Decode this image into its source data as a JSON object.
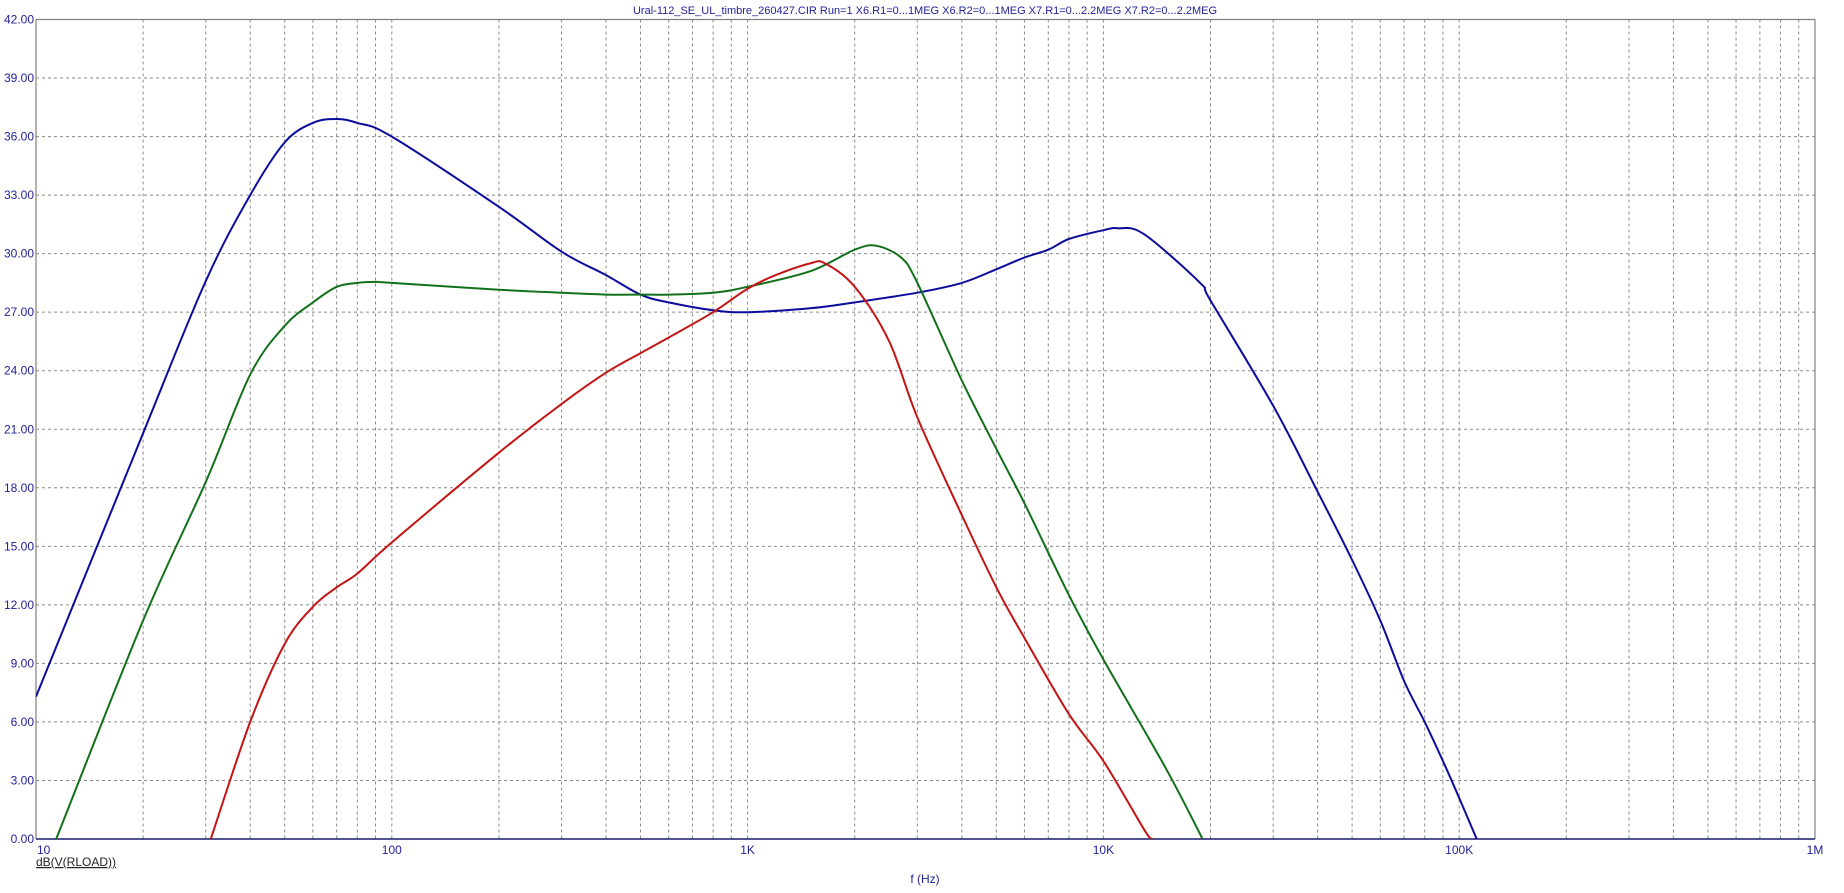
{
  "chart_data": {
    "type": "line",
    "title": "Ural-112_SE_UL_timbre_260427.CIR Run=1 X6.R1=0...1MEG X6.R2=0...1MEG X7.R1=0...2.2MEG X7.R2=0...2.2MEG",
    "xlabel": "f (Hz)",
    "ylabel": "dB(V(RLOAD))",
    "xscale": "log",
    "xlim": [
      10,
      1000000
    ],
    "ylim": [
      0,
      42
    ],
    "grid": true,
    "x_tick_values": [
      10,
      100,
      1000,
      10000,
      100000,
      1000000
    ],
    "x_tick_labels": [
      "10",
      "100",
      "1K",
      "10K",
      "100K",
      "1M"
    ],
    "y_tick_values": [
      0,
      3,
      6,
      9,
      12,
      15,
      18,
      21,
      24,
      27,
      30,
      33,
      36,
      39,
      42
    ],
    "y_tick_labels": [
      "0.00",
      "3.00",
      "6.00",
      "9.00",
      "12.00",
      "15.00",
      "18.00",
      "21.00",
      "24.00",
      "27.00",
      "30.00",
      "33.00",
      "36.00",
      "39.00",
      "42.00"
    ],
    "series": [
      {
        "color": "#0c0c9c",
        "points": [
          [
            10,
            7.3
          ],
          [
            20,
            20.8
          ],
          [
            30,
            28.6
          ],
          [
            40,
            33.0
          ],
          [
            50,
            35.7
          ],
          [
            60,
            36.7
          ],
          [
            70,
            36.9
          ],
          [
            80,
            36.7
          ],
          [
            100,
            36.0
          ],
          [
            200,
            32.4
          ],
          [
            300,
            30.1
          ],
          [
            400,
            28.9
          ],
          [
            500,
            27.9
          ],
          [
            600,
            27.5
          ],
          [
            800,
            27.1
          ],
          [
            1000,
            27.0
          ],
          [
            1500,
            27.2
          ],
          [
            2000,
            27.5
          ],
          [
            3000,
            28.0
          ],
          [
            4000,
            28.5
          ],
          [
            5000,
            29.2
          ],
          [
            6000,
            29.8
          ],
          [
            7000,
            30.2
          ],
          [
            8000,
            30.75
          ],
          [
            10000,
            31.2
          ],
          [
            11000,
            31.3
          ],
          [
            13000,
            31.0
          ],
          [
            18700,
            28.5
          ],
          [
            20000,
            27.6
          ],
          [
            30000,
            22.2
          ],
          [
            40000,
            17.8
          ],
          [
            50000,
            14.3
          ],
          [
            60000,
            11.2
          ],
          [
            70000,
            8.1
          ],
          [
            80000,
            6.0
          ],
          [
            90000,
            4.0
          ],
          [
            100000,
            2.1
          ],
          [
            112000,
            0
          ]
        ]
      },
      {
        "color": "#11701a",
        "points": [
          [
            11.4,
            0
          ],
          [
            20,
            11.2
          ],
          [
            30,
            18.3
          ],
          [
            40,
            23.8
          ],
          [
            50,
            26.3
          ],
          [
            60,
            27.5
          ],
          [
            70,
            28.3
          ],
          [
            80,
            28.5
          ],
          [
            90,
            28.55
          ],
          [
            100,
            28.5
          ],
          [
            200,
            28.15
          ],
          [
            300,
            28.0
          ],
          [
            400,
            27.9
          ],
          [
            500,
            27.9
          ],
          [
            600,
            27.9
          ],
          [
            800,
            28.0
          ],
          [
            1000,
            28.3
          ],
          [
            1500,
            29.1
          ],
          [
            2000,
            30.2
          ],
          [
            2300,
            30.4
          ],
          [
            2700,
            29.8
          ],
          [
            3000,
            28.5
          ],
          [
            4000,
            23.5
          ],
          [
            5000,
            20.0
          ],
          [
            6000,
            17.2
          ],
          [
            8000,
            12.5
          ],
          [
            10000,
            9.2
          ],
          [
            15000,
            3.6
          ],
          [
            19000,
            0
          ]
        ]
      },
      {
        "color": "#c41414",
        "points": [
          [
            31,
            0
          ],
          [
            40,
            6.0
          ],
          [
            50,
            10.0
          ],
          [
            60,
            11.9
          ],
          [
            70,
            12.9
          ],
          [
            80,
            13.6
          ],
          [
            100,
            15.2
          ],
          [
            200,
            19.8
          ],
          [
            300,
            22.3
          ],
          [
            400,
            23.9
          ],
          [
            500,
            24.9
          ],
          [
            600,
            25.7
          ],
          [
            800,
            27.0
          ],
          [
            1000,
            28.2
          ],
          [
            1200,
            28.9
          ],
          [
            1500,
            29.5
          ],
          [
            1650,
            29.5
          ],
          [
            2000,
            28.3
          ],
          [
            2500,
            25.5
          ],
          [
            3000,
            21.6
          ],
          [
            4000,
            16.6
          ],
          [
            5000,
            12.9
          ],
          [
            6000,
            10.3
          ],
          [
            8000,
            6.4
          ],
          [
            10000,
            4.0
          ],
          [
            13000,
            0.5
          ],
          [
            13700,
            0
          ]
        ]
      }
    ]
  }
}
